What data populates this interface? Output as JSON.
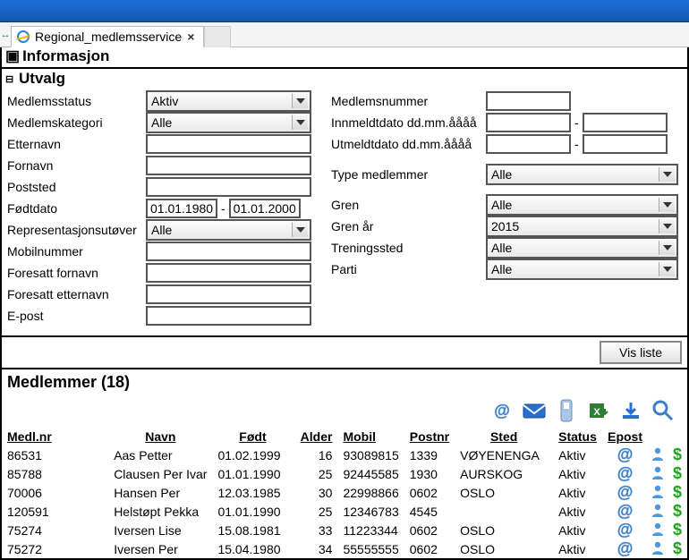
{
  "window": {
    "tab_title": "Regional_medlemsservice",
    "informasjon_label": "Informasjon",
    "utvalg_label": "Utvalg"
  },
  "filters_left": {
    "medlemsstatus": {
      "label": "Medlemsstatus",
      "value": "Aktiv"
    },
    "medlemskategori": {
      "label": "Medlemskategori",
      "value": "Alle"
    },
    "etternavn": {
      "label": "Etternavn",
      "value": ""
    },
    "fornavn": {
      "label": "Fornavn",
      "value": ""
    },
    "poststed": {
      "label": "Poststed",
      "value": ""
    },
    "fodtdato": {
      "label": "Fødtdato",
      "from": "01.01.1980",
      "to": "01.01.2000"
    },
    "representasjon": {
      "label": "Representasjonsutøver",
      "value": "Alle"
    },
    "mobilnummer": {
      "label": "Mobilnummer",
      "value": ""
    },
    "foresatt_fornavn": {
      "label": "Foresatt fornavn",
      "value": ""
    },
    "foresatt_etternavn": {
      "label": "Foresatt etternavn",
      "value": ""
    },
    "epost": {
      "label": "E-post",
      "value": ""
    }
  },
  "filters_right": {
    "medlemsnummer": {
      "label": "Medlemsnummer",
      "value": ""
    },
    "innmeldt": {
      "label": "Innmeldtdato dd.mm.åååå",
      "from": "",
      "to": ""
    },
    "utmeldt": {
      "label": "Utmeldtdato dd.mm.åååå",
      "from": "",
      "to": ""
    },
    "type_medlemmer": {
      "label": "Type medlemmer",
      "value": "Alle"
    },
    "gren": {
      "label": "Gren",
      "value": "Alle"
    },
    "gren_aar": {
      "label": "Gren år",
      "value": "2015"
    },
    "treningssted": {
      "label": "Treningssted",
      "value": "Alle"
    },
    "parti": {
      "label": "Parti",
      "value": "Alle"
    }
  },
  "buttons": {
    "vis_liste": "Vis liste"
  },
  "members": {
    "title": "Medlemmer  (18)",
    "columns": {
      "medlnr": "Medl.nr",
      "navn": "Navn",
      "fodt": "Født",
      "alder": "Alder",
      "mobil": "Mobil",
      "postnr": "Postnr",
      "sted": "Sted",
      "status": "Status",
      "epost": "Epost"
    },
    "rows": [
      {
        "medlnr": "86531",
        "navn": "Aas Petter",
        "fodt": "01.02.1999",
        "alder": "16",
        "mobil": "93089815",
        "postnr": "1339",
        "sted": "VØYENENGA",
        "status": "Aktiv"
      },
      {
        "medlnr": "85788",
        "navn": "Clausen Per Ivar",
        "fodt": "01.01.1990",
        "alder": "25",
        "mobil": "92445585",
        "postnr": "1930",
        "sted": "AURSKOG",
        "status": "Aktiv"
      },
      {
        "medlnr": "70006",
        "navn": "Hansen Per",
        "fodt": "12.03.1985",
        "alder": "30",
        "mobil": "22998866",
        "postnr": "0602",
        "sted": "OSLO",
        "status": "Aktiv"
      },
      {
        "medlnr": "120591",
        "navn": "Helstøpt Pekka",
        "fodt": "01.01.1990",
        "alder": "25",
        "mobil": "12346783",
        "postnr": "4545",
        "sted": "",
        "status": "Aktiv"
      },
      {
        "medlnr": "75274",
        "navn": "Iversen Lise",
        "fodt": "15.08.1981",
        "alder": "33",
        "mobil": "11223344",
        "postnr": "0602",
        "sted": "OSLO",
        "status": "Aktiv"
      },
      {
        "medlnr": "75272",
        "navn": "Iversen Per",
        "fodt": "15.04.1980",
        "alder": "34",
        "mobil": "55555555",
        "postnr": "0602",
        "sted": "OSLO",
        "status": "Aktiv"
      }
    ]
  },
  "colors": {
    "titlebar": "#1b6fd8",
    "border": "#000000",
    "icon_blue": "#3a7fc4",
    "icon_green": "#1aa51a",
    "excel_green": "#2e7d32"
  }
}
